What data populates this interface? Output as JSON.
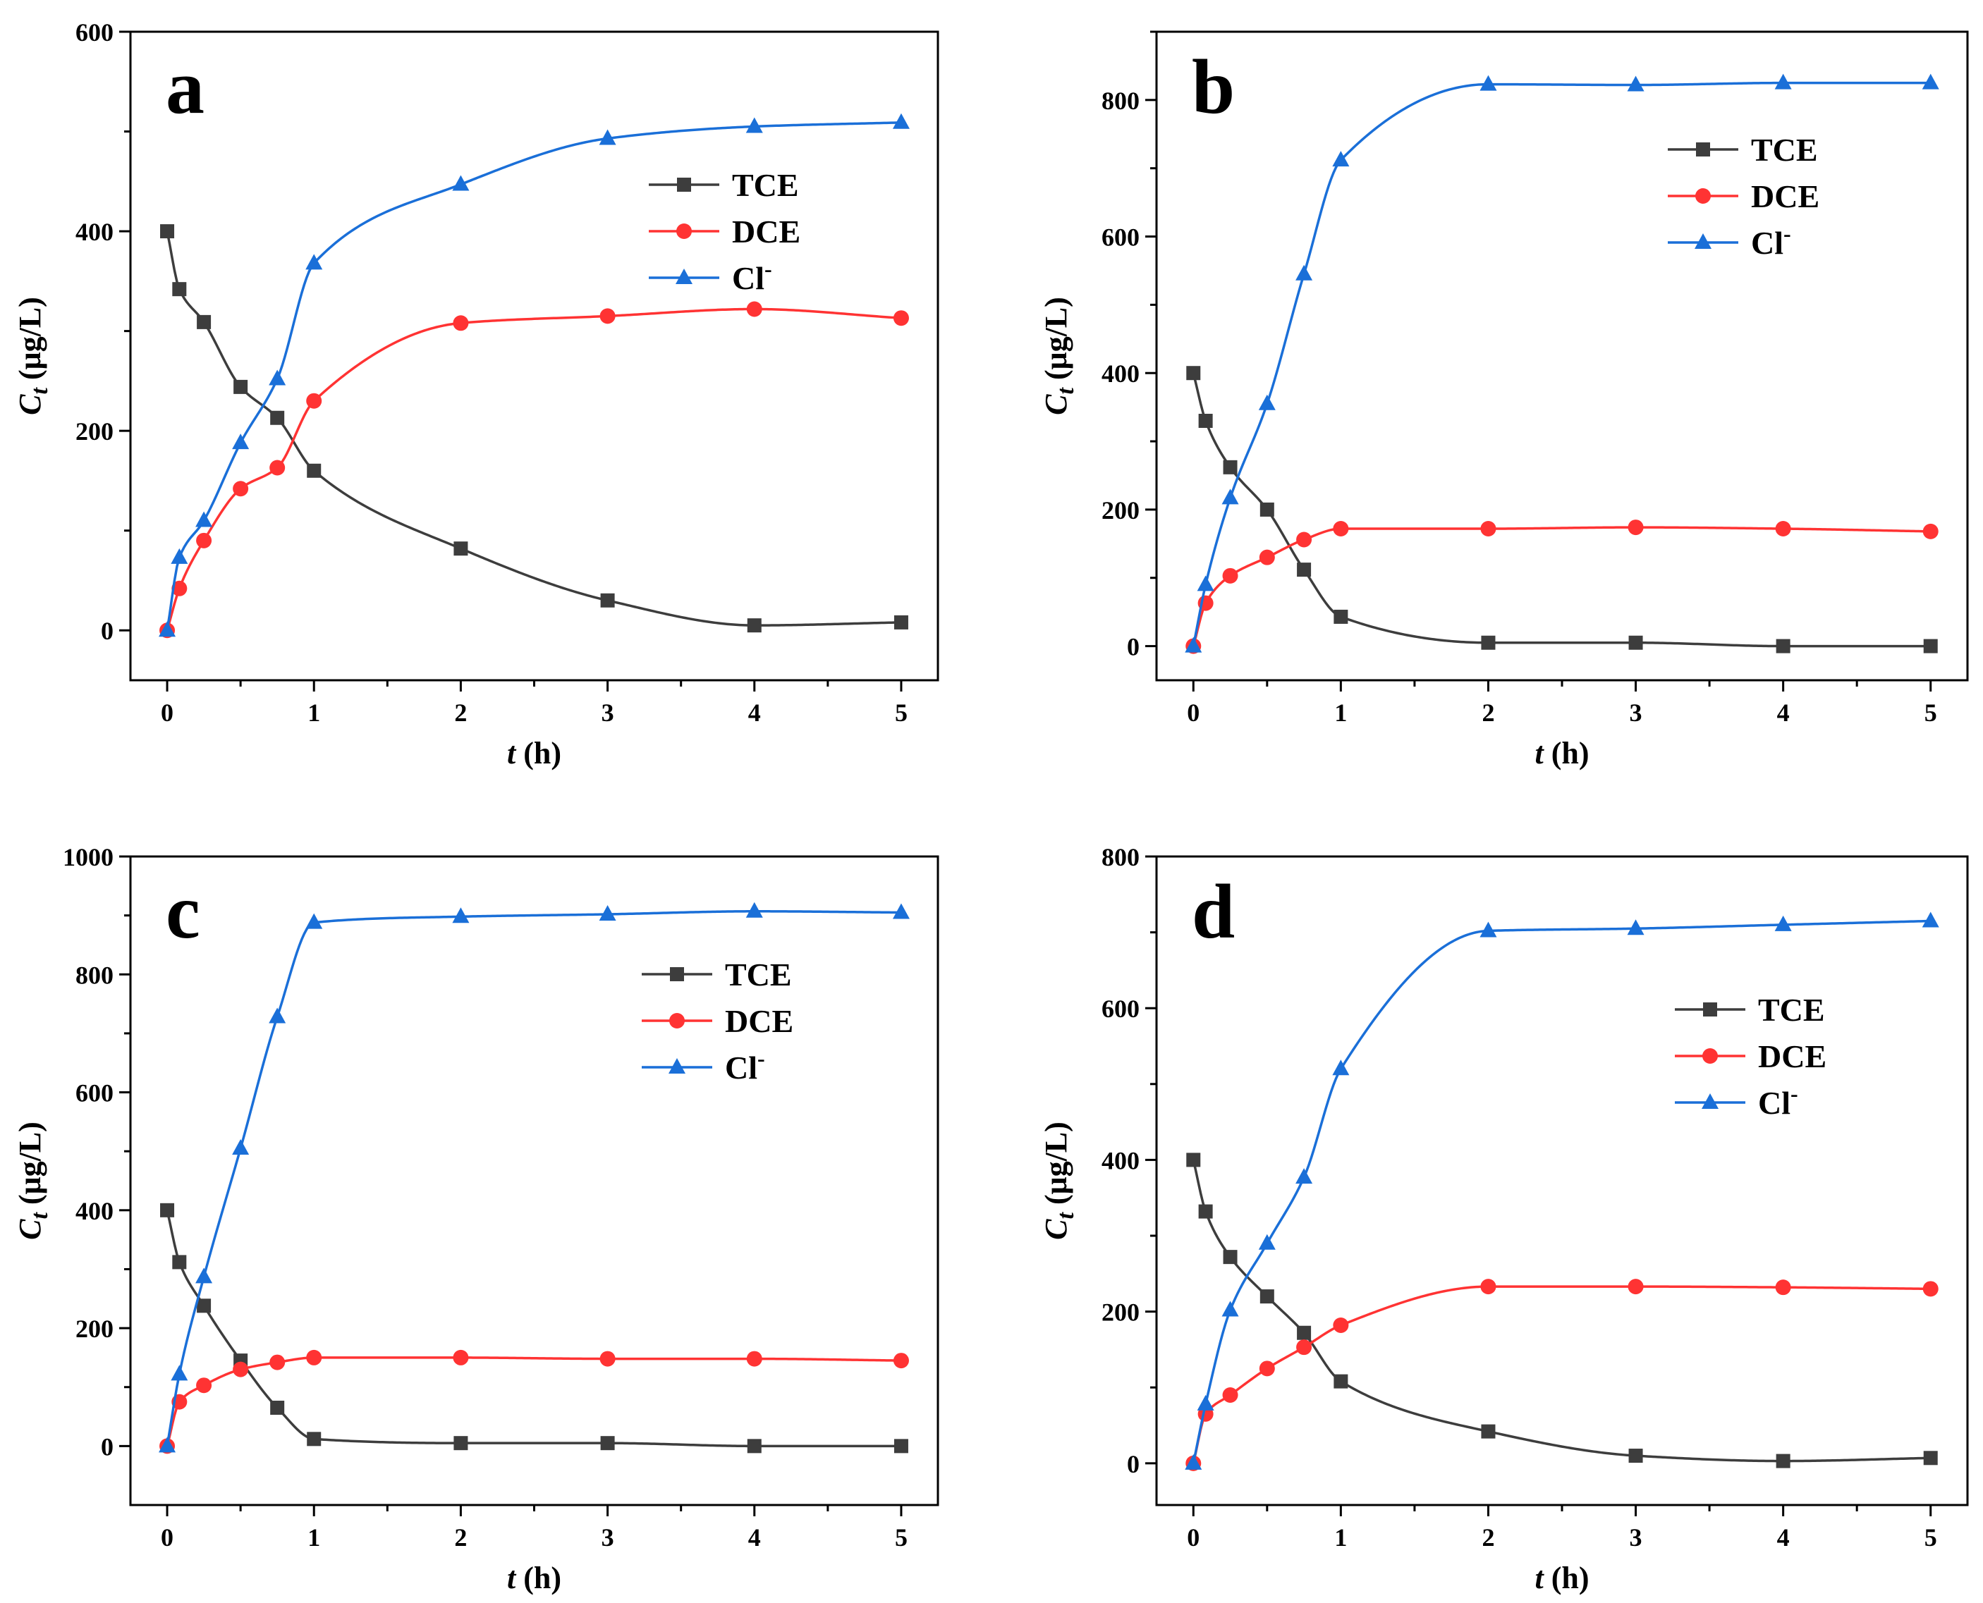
{
  "colors": {
    "TCE": "#3d3d3d",
    "DCE": "#ff3333",
    "Cl": "#1a6fd8",
    "axis": "#000000"
  },
  "chart_data": [
    {
      "type": "line",
      "panel": "a",
      "xlabel": "t (h)",
      "ylabel": "C t (μg/L)",
      "xlim": [
        -0.25,
        5.25
      ],
      "ylim": [
        -50,
        600
      ],
      "xticks": [
        0,
        1,
        2,
        3,
        4,
        5
      ],
      "yticks": [
        0,
        200,
        400,
        600
      ],
      "legend_position": "right-upper",
      "x": [
        0,
        0.083,
        0.25,
        0.5,
        0.75,
        1,
        2,
        3,
        4,
        5
      ],
      "series": [
        {
          "name": "TCE",
          "key": "TCE",
          "marker": "square",
          "values": [
            400,
            342,
            309,
            244,
            213,
            160,
            82,
            30,
            5,
            8
          ]
        },
        {
          "name": "DCE",
          "key": "DCE",
          "marker": "circle",
          "values": [
            0,
            42,
            90,
            142,
            163,
            230,
            308,
            315,
            322,
            313
          ]
        },
        {
          "name": "Cl",
          "sup": "-",
          "key": "Cl",
          "marker": "triangle",
          "values": [
            0,
            73,
            110,
            188,
            252,
            368,
            447,
            493,
            505,
            509
          ]
        }
      ]
    },
    {
      "type": "line",
      "panel": "b",
      "xlabel": "t (h)",
      "ylabel": "C t (μg/L)",
      "xlim": [
        -0.25,
        5.25
      ],
      "ylim": [
        -50,
        900
      ],
      "xticks": [
        0,
        1,
        2,
        3,
        4,
        5
      ],
      "yticks": [
        0,
        200,
        400,
        600,
        800
      ],
      "legend_position": "right-upper",
      "x": [
        0,
        0.083,
        0.25,
        0.5,
        0.75,
        1,
        2,
        3,
        4,
        5
      ],
      "series": [
        {
          "name": "TCE",
          "key": "TCE",
          "marker": "square",
          "values": [
            400,
            330,
            262,
            200,
            112,
            43,
            5,
            5,
            0,
            0
          ]
        },
        {
          "name": "DCE",
          "key": "DCE",
          "marker": "circle",
          "values": [
            0,
            63,
            103,
            130,
            156,
            172,
            172,
            174,
            172,
            168
          ]
        },
        {
          "name": "Cl",
          "sup": "-",
          "key": "Cl",
          "marker": "triangle",
          "values": [
            0,
            90,
            217,
            355,
            545,
            712,
            823,
            822,
            825,
            825
          ]
        }
      ]
    },
    {
      "type": "line",
      "panel": "c",
      "xlabel": "t (h)",
      "ylabel": "C t (μg/L)",
      "xlim": [
        -0.25,
        5.25
      ],
      "ylim": [
        -100,
        1000
      ],
      "xticks": [
        0,
        1,
        2,
        3,
        4,
        5
      ],
      "yticks": [
        0,
        200,
        400,
        600,
        800,
        1000
      ],
      "legend_position": "right-upper",
      "x": [
        0,
        0.083,
        0.25,
        0.5,
        0.75,
        1,
        2,
        3,
        4,
        5
      ],
      "series": [
        {
          "name": "TCE",
          "key": "TCE",
          "marker": "square",
          "values": [
            400,
            312,
            238,
            145,
            65,
            12,
            5,
            5,
            0,
            0
          ]
        },
        {
          "name": "DCE",
          "key": "DCE",
          "marker": "circle",
          "values": [
            0,
            75,
            103,
            130,
            142,
            150,
            150,
            148,
            148,
            145
          ]
        },
        {
          "name": "Cl",
          "sup": "-",
          "key": "Cl",
          "marker": "triangle",
          "values": [
            0,
            122,
            287,
            505,
            728,
            888,
            898,
            902,
            907,
            905
          ]
        }
      ]
    },
    {
      "type": "line",
      "panel": "d",
      "xlabel": "t (h)",
      "ylabel": "C t (μg/L)",
      "xlim": [
        -0.25,
        5.25
      ],
      "ylim": [
        -55,
        800
      ],
      "xticks": [
        0,
        1,
        2,
        3,
        4,
        5
      ],
      "yticks": [
        0,
        200,
        400,
        600,
        800
      ],
      "legend_position": "right-upper",
      "x": [
        0,
        0.083,
        0.25,
        0.5,
        0.75,
        1,
        2,
        3,
        4,
        5
      ],
      "series": [
        {
          "name": "TCE",
          "key": "TCE",
          "marker": "square",
          "values": [
            400,
            332,
            272,
            220,
            172,
            108,
            42,
            10,
            3,
            7
          ]
        },
        {
          "name": "DCE",
          "key": "DCE",
          "marker": "circle",
          "values": [
            0,
            65,
            90,
            125,
            153,
            182,
            233,
            233,
            232,
            230
          ]
        },
        {
          "name": "Cl",
          "sup": "-",
          "key": "Cl",
          "marker": "triangle",
          "values": [
            0,
            78,
            202,
            290,
            377,
            520,
            702,
            705,
            710,
            715
          ]
        }
      ]
    }
  ]
}
